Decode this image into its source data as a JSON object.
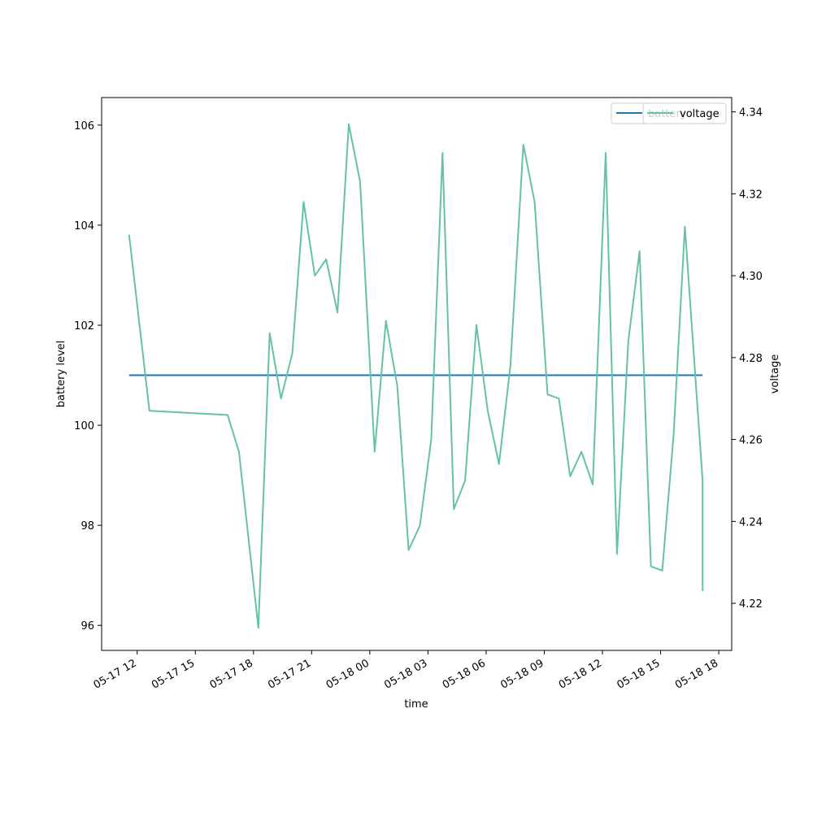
{
  "chart_data": {
    "type": "line",
    "xlabel": "time",
    "ylabel": "battery level",
    "y2label": "voltage",
    "x_tick_labels": [
      "05-17 12",
      "05-17 15",
      "05-17 18",
      "05-17 21",
      "05-18 00",
      "05-18 03",
      "05-18 06",
      "05-18 09",
      "05-18 12",
      "05-18 15",
      "05-18 18"
    ],
    "x_ticks": [
      "2025-05-17 12:00",
      "2025-05-17 15:00",
      "2025-05-17 18:00",
      "2025-05-17 21:00",
      "2025-05-18 00:00",
      "2025-05-18 03:00",
      "2025-05-18 06:00",
      "2025-05-18 09:00",
      "2025-05-18 12:00",
      "2025-05-18 15:00",
      "2025-05-18 18:00"
    ],
    "xlim": [
      "2025-05-17 10:10",
      "2025-05-18 18:40"
    ],
    "ylim": [
      95.5,
      106.55
    ],
    "y_ticks": [
      96,
      98,
      100,
      102,
      104,
      106
    ],
    "y2lim": [
      4.2085,
      4.3435
    ],
    "y2_ticks": [
      4.22,
      4.24,
      4.26,
      4.28,
      4.3,
      4.32,
      4.34
    ],
    "grid": false,
    "legend": {
      "position": "top-right",
      "entries": [
        "battery",
        "voltage"
      ]
    },
    "series": [
      {
        "name": "battery",
        "axis": "left",
        "color": "#1f77b4",
        "x": [
          "2025-05-17 11:35",
          "2025-05-18 17:10"
        ],
        "y": [
          101,
          101
        ]
      },
      {
        "name": "voltage",
        "axis": "right",
        "color": "#66c2a5",
        "x": [
          "2025-05-17 11:35",
          "2025-05-17 12:38",
          "2025-05-17 16:40",
          "2025-05-17 17:15",
          "2025-05-17 18:15",
          "2025-05-17 18:50",
          "2025-05-17 19:25",
          "2025-05-17 20:00",
          "2025-05-17 20:35",
          "2025-05-17 21:10",
          "2025-05-17 21:45",
          "2025-05-17 22:20",
          "2025-05-17 22:55",
          "2025-05-17 23:30",
          "2025-05-18 00:15",
          "2025-05-18 00:50",
          "2025-05-18 01:25",
          "2025-05-18 02:00",
          "2025-05-18 02:35",
          "2025-05-18 03:10",
          "2025-05-18 03:45",
          "2025-05-18 04:20",
          "2025-05-18 04:55",
          "2025-05-18 05:30",
          "2025-05-18 06:05",
          "2025-05-18 06:40",
          "2025-05-18 07:15",
          "2025-05-18 07:55",
          "2025-05-18 08:30",
          "2025-05-18 09:10",
          "2025-05-18 09:45",
          "2025-05-18 10:20",
          "2025-05-18 10:55",
          "2025-05-18 11:30",
          "2025-05-18 12:10",
          "2025-05-18 12:45",
          "2025-05-18 13:20",
          "2025-05-18 13:55",
          "2025-05-18 14:30",
          "2025-05-18 15:05",
          "2025-05-18 15:40",
          "2025-05-18 16:15",
          "2025-05-18 17:10",
          "2025-05-18 17:10"
        ],
        "y": [
          4.31,
          4.267,
          4.266,
          4.257,
          4.214,
          4.286,
          4.27,
          4.281,
          4.318,
          4.3,
          4.304,
          4.291,
          4.337,
          4.323,
          4.257,
          4.289,
          4.273,
          4.233,
          4.239,
          4.26,
          4.33,
          4.243,
          4.25,
          4.288,
          4.267,
          4.254,
          4.278,
          4.332,
          4.318,
          4.271,
          4.27,
          4.251,
          4.257,
          4.249,
          4.33,
          4.232,
          4.284,
          4.306,
          4.229,
          4.228,
          4.261,
          4.312,
          4.25,
          4.223
        ]
      }
    ]
  }
}
